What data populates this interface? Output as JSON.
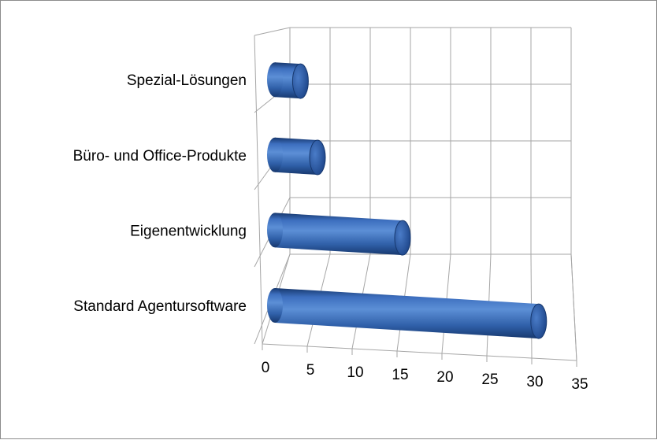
{
  "chart_data": {
    "type": "bar",
    "orientation": "horizontal",
    "style": "3d-cylinder",
    "categories": [
      "Standard Agentursoftware",
      "Eigenentwicklung",
      "Büro- und Office-Produkte",
      "Spezial-Lösungen"
    ],
    "series": [
      {
        "values": [
          31,
          15,
          5,
          3
        ]
      }
    ],
    "xlim": [
      0,
      35
    ],
    "xticks": [
      "0",
      "5",
      "10",
      "15",
      "20",
      "25",
      "30",
      "35"
    ],
    "grid": true,
    "title": "",
    "xlabel": "",
    "ylabel": "",
    "colors": {
      "bar": "#2f5fa8",
      "bar_dark": "#17386e",
      "bar_light": "#5c8fd6",
      "grid": "#a6a6a6"
    }
  }
}
